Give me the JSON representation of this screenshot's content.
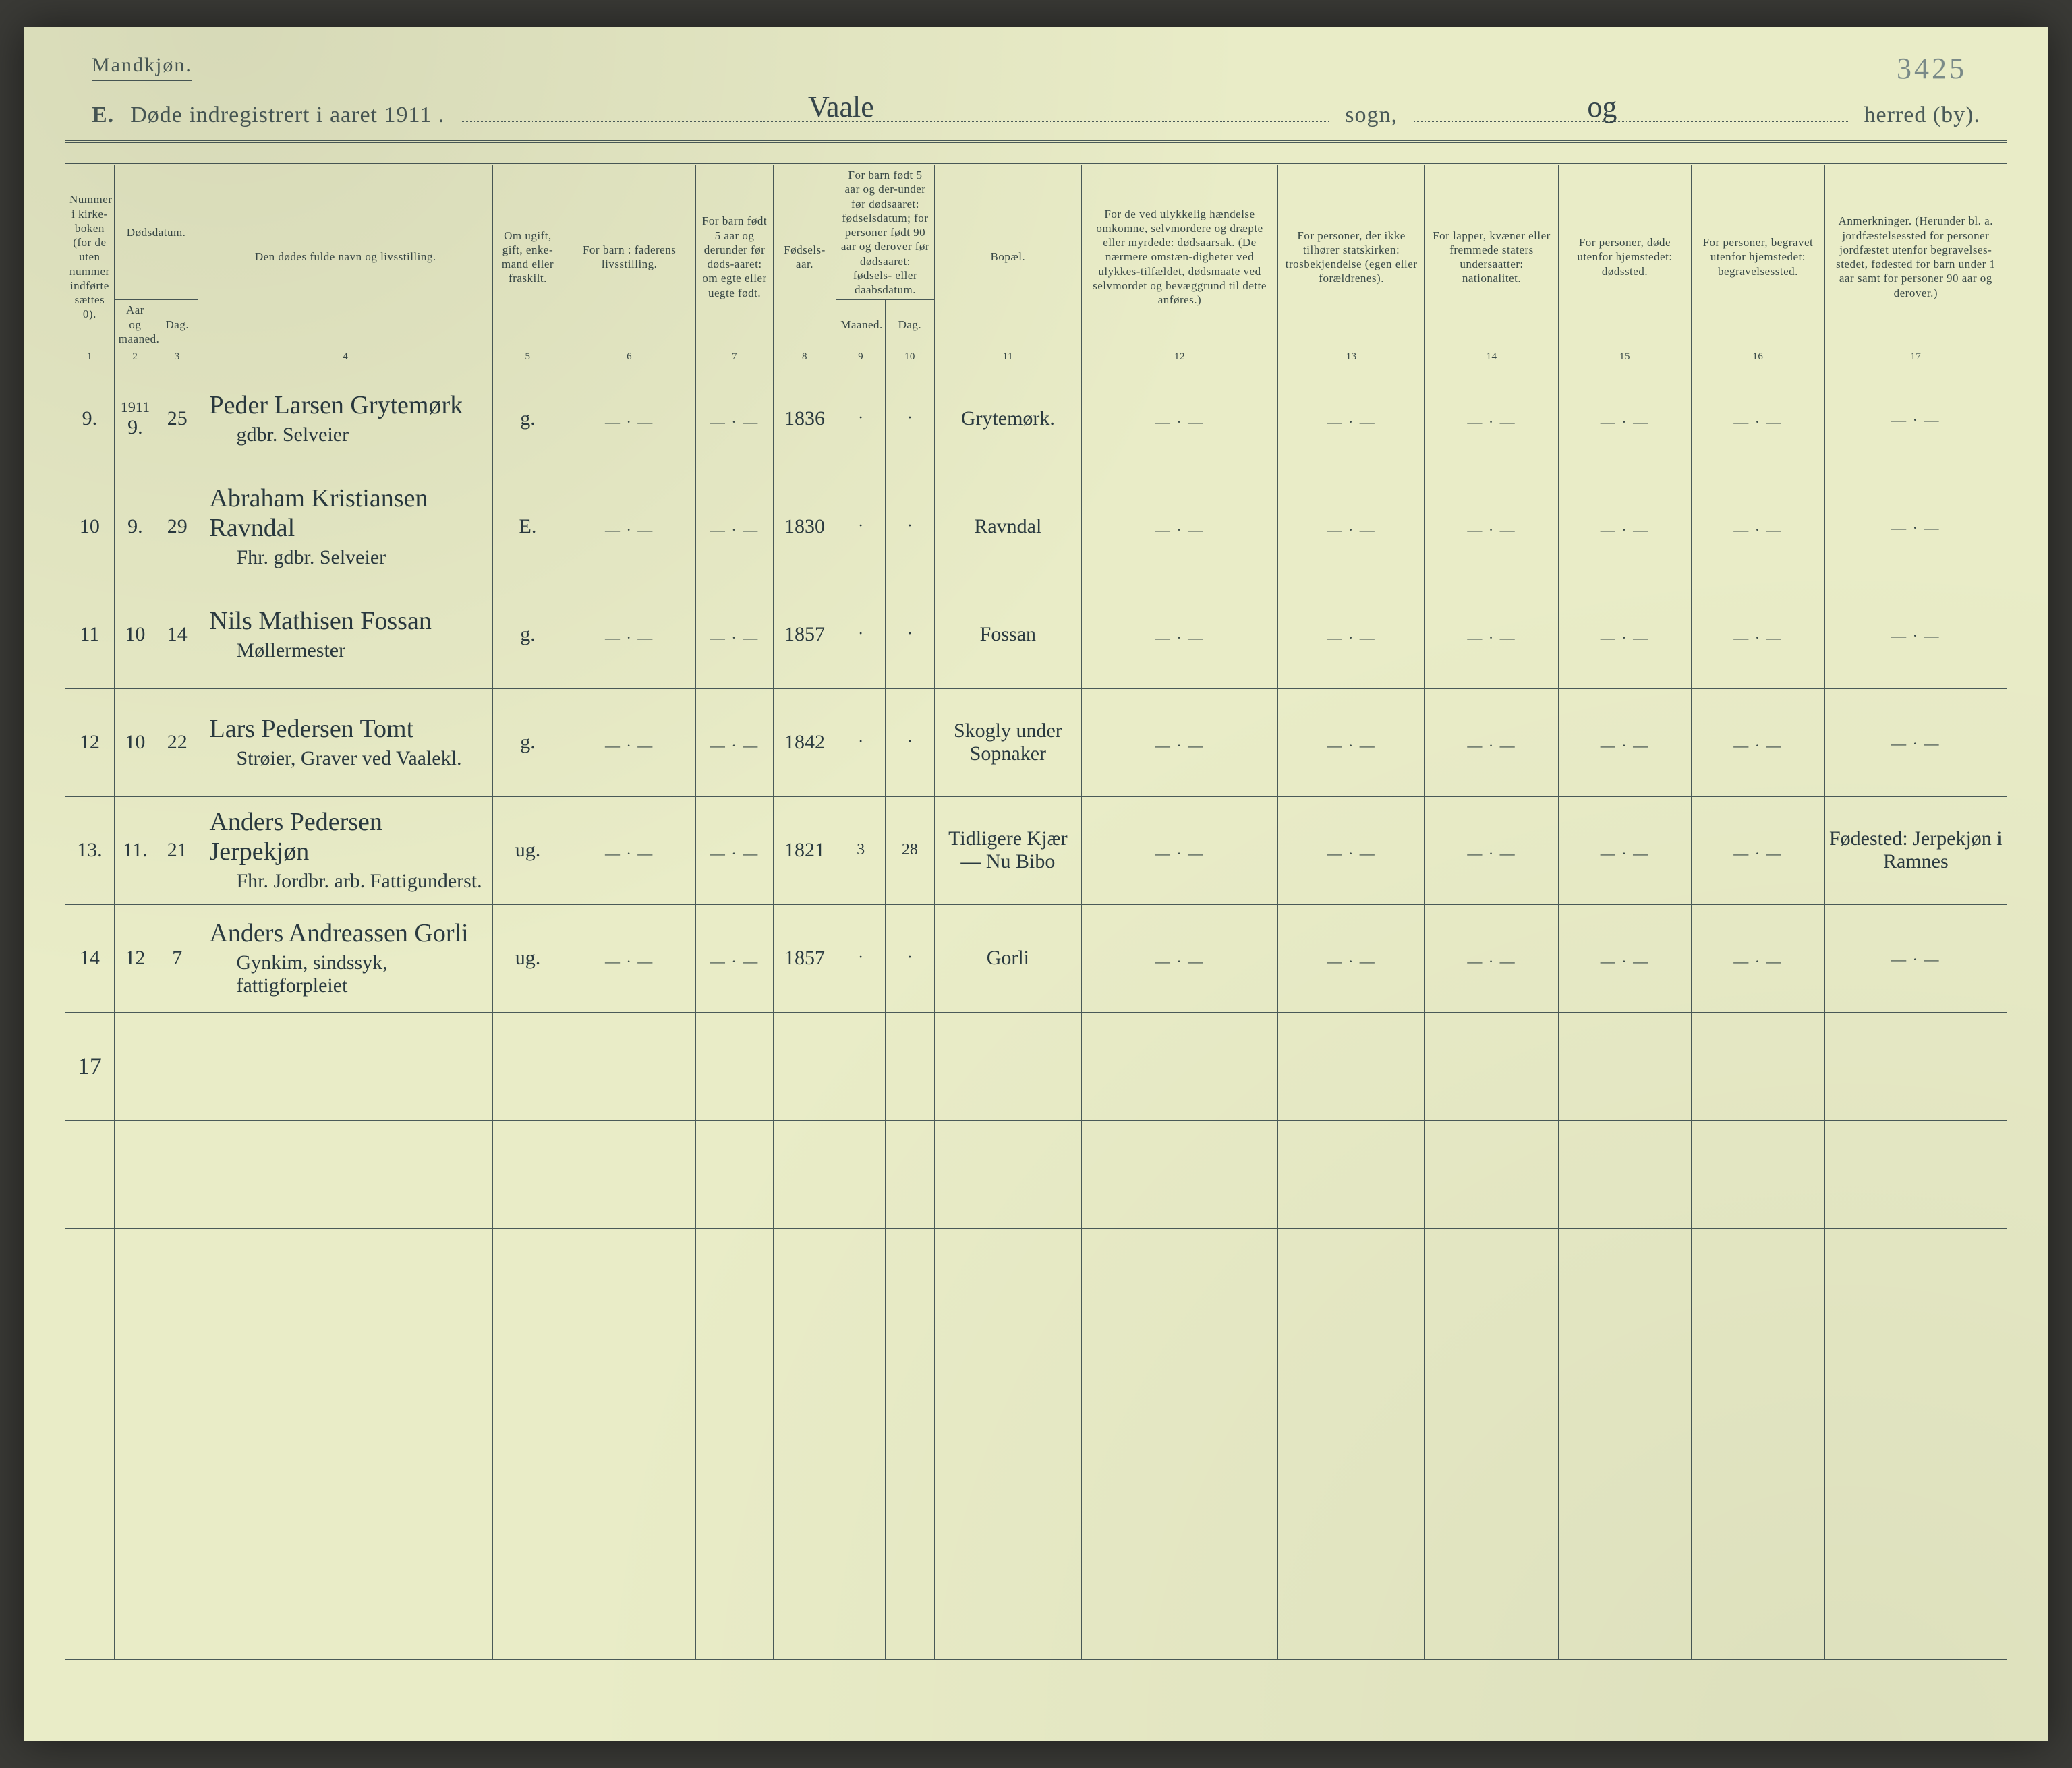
{
  "page": {
    "gender_label": "Mandkjøn.",
    "pencil_top_right": "3425",
    "title_prefix_bold": "E.",
    "title_text": "Døde indregistrert i aaret 1911 .",
    "sogn_label": "sogn,",
    "herred_label": "herred (by).",
    "sogn_handwritten": "Vaale",
    "herred_handwritten": "og",
    "margin_tally": "17",
    "colors": {
      "paper": "#e9ecc7",
      "ink_printed": "#4a5a58",
      "ink_hand": "#2a3a40",
      "pencil": "#7a8a88"
    }
  },
  "headers": {
    "col1": "Nummer i kirke-boken (for de uten nummer indførte sættes 0).",
    "col2_group": "Dødsdatum.",
    "col2": "Aar og maaned.",
    "col3": "Dag.",
    "col4": "Den dødes fulde navn og livsstilling.",
    "col5": "Om ugift, gift, enke-mand eller fraskilt.",
    "col6": "For barn : faderens livsstilling.",
    "col7": "For barn født 5 aar og derunder før døds-aaret: om egte eller uegte født.",
    "col8": "Fødsels-aar.",
    "col9_10_group": "For barn født 5 aar og der-under før dødsaaret: fødselsdatum; for personer født 90 aar og derover før dødsaaret: fødsels- eller daabsdatum.",
    "col9": "Maaned.",
    "col10": "Dag.",
    "col11": "Bopæl.",
    "col12": "For de ved ulykkelig hændelse omkomne, selvmordere og dræpte eller myrdede: dødsaarsak. (De nærmere omstæn-digheter ved ulykkes-tilfældet, dødsmaate ved selvmordet og bevæggrund til dette anføres.)",
    "col13": "For personer, der ikke tilhører statskirken: trosbekjendelse (egen eller forældrenes).",
    "col14": "For lapper, kvæner eller fremmede staters undersaatter: nationalitet.",
    "col15": "For personer, døde utenfor hjemstedet: dødssted.",
    "col16": "For personer, begravet utenfor hjemstedet: begravelsessted.",
    "col17": "Anmerkninger. (Herunder bl. a. jordfæstelsessted for personer jordfæstet utenfor begravelses-stedet, fødested for barn under 1 aar samt for personer 90 aar og derover.)",
    "colnums": [
      "1",
      "2",
      "3",
      "4",
      "5",
      "6",
      "7",
      "8",
      "9",
      "10",
      "11",
      "12",
      "13",
      "14",
      "15",
      "16",
      "17"
    ]
  },
  "rows": [
    {
      "num": "9.",
      "year_month_top": "1911",
      "year_month": "9.",
      "day": "25",
      "name": "Peder Larsen Grytemørk",
      "name2": "gdbr. Selveier",
      "status": "g.",
      "birth_year": "1836",
      "m": "·",
      "d": "·",
      "residence": "Grytemørk."
    },
    {
      "num": "10",
      "year_month": "9.",
      "day": "29",
      "name": "Abraham Kristiansen Ravndal",
      "name2": "Fhr. gdbr. Selveier",
      "status": "E.",
      "birth_year": "1830",
      "m": "·",
      "d": "·",
      "residence": "Ravndal"
    },
    {
      "num": "11",
      "year_month": "10",
      "day": "14",
      "name": "Nils Mathisen Fossan",
      "name2": "Møllermester",
      "status": "g.",
      "birth_year": "1857",
      "m": "·",
      "d": "·",
      "residence": "Fossan"
    },
    {
      "num": "12",
      "year_month": "10",
      "day": "22",
      "name": "Lars Pedersen Tomt",
      "name2": "Strøier, Graver ved Vaalekl.",
      "status": "g.",
      "birth_year": "1842",
      "m": "·",
      "d": "·",
      "residence": "Skogly under Sopnaker"
    },
    {
      "num": "13.",
      "year_month": "11.",
      "day": "21",
      "name": "Anders Pedersen Jerpekjøn",
      "name2": "Fhr. Jordbr. arb. Fattigunderst.",
      "status": "ug.",
      "birth_year": "1821",
      "m": "3",
      "d": "28",
      "residence": "Tidligere Kjær — Nu Bibo",
      "remark": "Fødested: Jerpekjøn i Ramnes"
    },
    {
      "num": "14",
      "year_month": "12",
      "day": "7",
      "name": "Anders Andreassen Gorli",
      "name2": "Gynkim, sindssyk, fattigforpleiet",
      "status": "ug.",
      "birth_year": "1857",
      "m": "·",
      "d": "·",
      "residence": "Gorli"
    }
  ],
  "empty_rows": 6
}
